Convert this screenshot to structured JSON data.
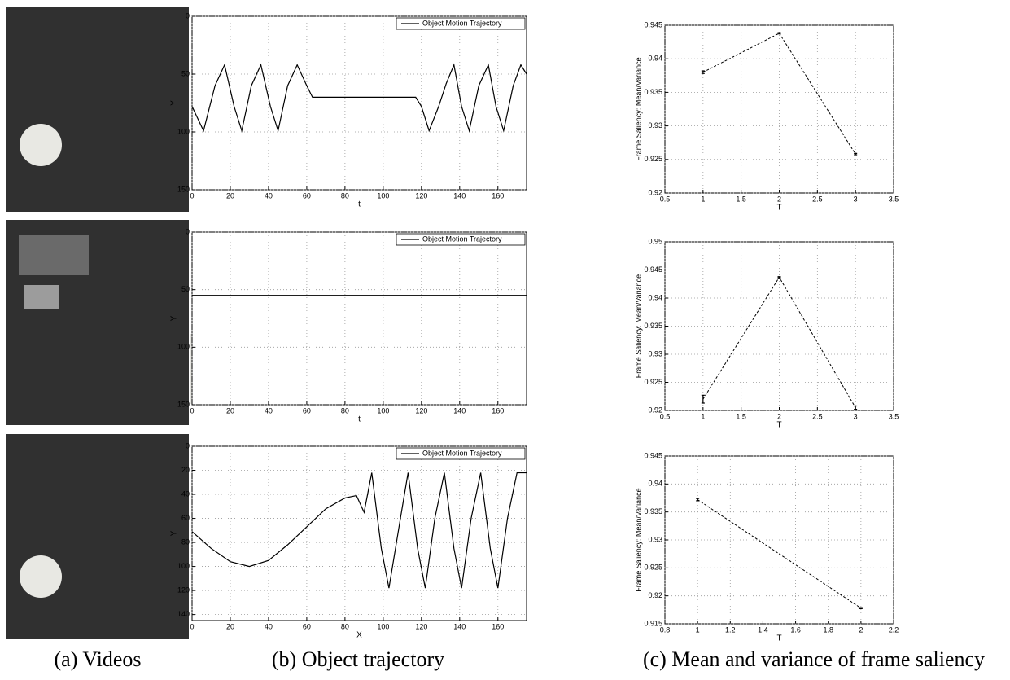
{
  "captions": [
    "(a) Videos",
    "(b) Object trajectory",
    "(c) Mean and variance of frame saliency"
  ],
  "chart_data": [
    {
      "type": "line",
      "xlabel": "t",
      "ylabel": "Y",
      "xlim": [
        0,
        175
      ],
      "xticks": [
        0,
        20,
        40,
        60,
        80,
        100,
        120,
        140,
        160
      ],
      "ylim": [
        0,
        150
      ],
      "yticks": [
        0,
        50,
        100,
        150
      ],
      "y_inverted": true,
      "grid": true,
      "legend": "upper right",
      "x": [
        0,
        6,
        12,
        17,
        22,
        26,
        31,
        36,
        41,
        45,
        50,
        55,
        60,
        63,
        117,
        120,
        124,
        129,
        133,
        137,
        141,
        145,
        150,
        155,
        159,
        163,
        168,
        172,
        175
      ],
      "series": [
        {
          "name": "Object Motion Trajectory",
          "color": "#000000",
          "values": [
            78,
            99,
            60,
            42,
            78,
            99,
            60,
            42,
            78,
            99,
            60,
            42,
            60,
            70,
            70,
            78,
            99,
            78,
            58,
            42,
            78,
            99,
            60,
            42,
            78,
            99,
            60,
            42,
            50
          ]
        }
      ]
    },
    {
      "type": "line",
      "xlabel": "t",
      "ylabel": "Y",
      "xlim": [
        0,
        175
      ],
      "xticks": [
        0,
        20,
        40,
        60,
        80,
        100,
        120,
        140,
        160
      ],
      "ylim": [
        0,
        150
      ],
      "yticks": [
        0,
        50,
        100,
        150
      ],
      "y_inverted": true,
      "grid": true,
      "legend": "upper right",
      "x": [
        0,
        175
      ],
      "series": [
        {
          "name": "Object Motion Trajectory",
          "color": "#000000",
          "values": [
            55,
            55
          ]
        }
      ]
    },
    {
      "type": "line",
      "xlabel": "X",
      "ylabel": "Y",
      "xlim": [
        0,
        175
      ],
      "xticks": [
        0,
        20,
        40,
        60,
        80,
        100,
        120,
        140,
        160
      ],
      "ylim": [
        0,
        145
      ],
      "yticks": [
        0,
        20,
        40,
        60,
        80,
        100,
        120,
        140
      ],
      "y_inverted": true,
      "grid": true,
      "legend": "upper right",
      "x": [
        0,
        10,
        20,
        30,
        40,
        50,
        60,
        70,
        80,
        86,
        90,
        94,
        99,
        103,
        109,
        113,
        118,
        122,
        127,
        132,
        137,
        141,
        146,
        151,
        156,
        160,
        165,
        170,
        175
      ],
      "series": [
        {
          "name": "Object Motion Trajectory",
          "color": "#000000",
          "values": [
            71,
            85,
            96,
            100,
            95,
            82,
            67,
            52,
            43,
            41,
            55,
            22,
            85,
            118,
            60,
            22,
            85,
            118,
            60,
            22,
            85,
            118,
            60,
            22,
            85,
            118,
            60,
            22,
            22
          ]
        }
      ]
    },
    {
      "type": "errorbar",
      "xlabel": "T",
      "ylabel": "Frame Saliency: Mean/Variance",
      "xlim": [
        0.5,
        3.5
      ],
      "xticks": [
        0.5,
        1,
        1.5,
        2,
        2.5,
        3,
        3.5
      ],
      "ylim": [
        0.92,
        0.945
      ],
      "yticks": [
        0.92,
        0.925,
        0.93,
        0.935,
        0.94,
        0.945
      ],
      "grid": true,
      "color": "#000000",
      "line_style": "dashed",
      "x": [
        1,
        2,
        3
      ],
      "values": [
        0.938,
        0.9438,
        0.9258
      ],
      "errors": [
        0.0002,
        0.0001,
        0.0001
      ]
    },
    {
      "type": "errorbar",
      "xlabel": "T",
      "ylabel": "Frame Saliency: Mean/Variance",
      "xlim": [
        0.5,
        3.5
      ],
      "xticks": [
        0.5,
        1,
        1.5,
        2,
        2.5,
        3,
        3.5
      ],
      "ylim": [
        0.92,
        0.95
      ],
      "yticks": [
        0.92,
        0.925,
        0.93,
        0.935,
        0.94,
        0.945,
        0.95
      ],
      "grid": true,
      "color": "#000000",
      "line_style": "dashed",
      "x": [
        1,
        2,
        3
      ],
      "values": [
        0.922,
        0.9437,
        0.9205
      ],
      "errors": [
        0.0007,
        0.0001,
        0.0003
      ]
    },
    {
      "type": "errorbar",
      "xlabel": "T",
      "ylabel": "Frame Saliency: Mean/Variance",
      "xlim": [
        0.8,
        2.2
      ],
      "xticks": [
        0.8,
        1,
        1.2,
        1.4,
        1.6,
        1.8,
        2,
        2.2
      ],
      "ylim": [
        0.915,
        0.945
      ],
      "yticks": [
        0.915,
        0.92,
        0.925,
        0.93,
        0.935,
        0.94,
        0.945
      ],
      "grid": true,
      "color": "#000000",
      "line_style": "dashed",
      "x": [
        1,
        2
      ],
      "values": [
        0.9372,
        0.9178
      ],
      "errors": [
        0.0002,
        0.0001
      ]
    }
  ]
}
